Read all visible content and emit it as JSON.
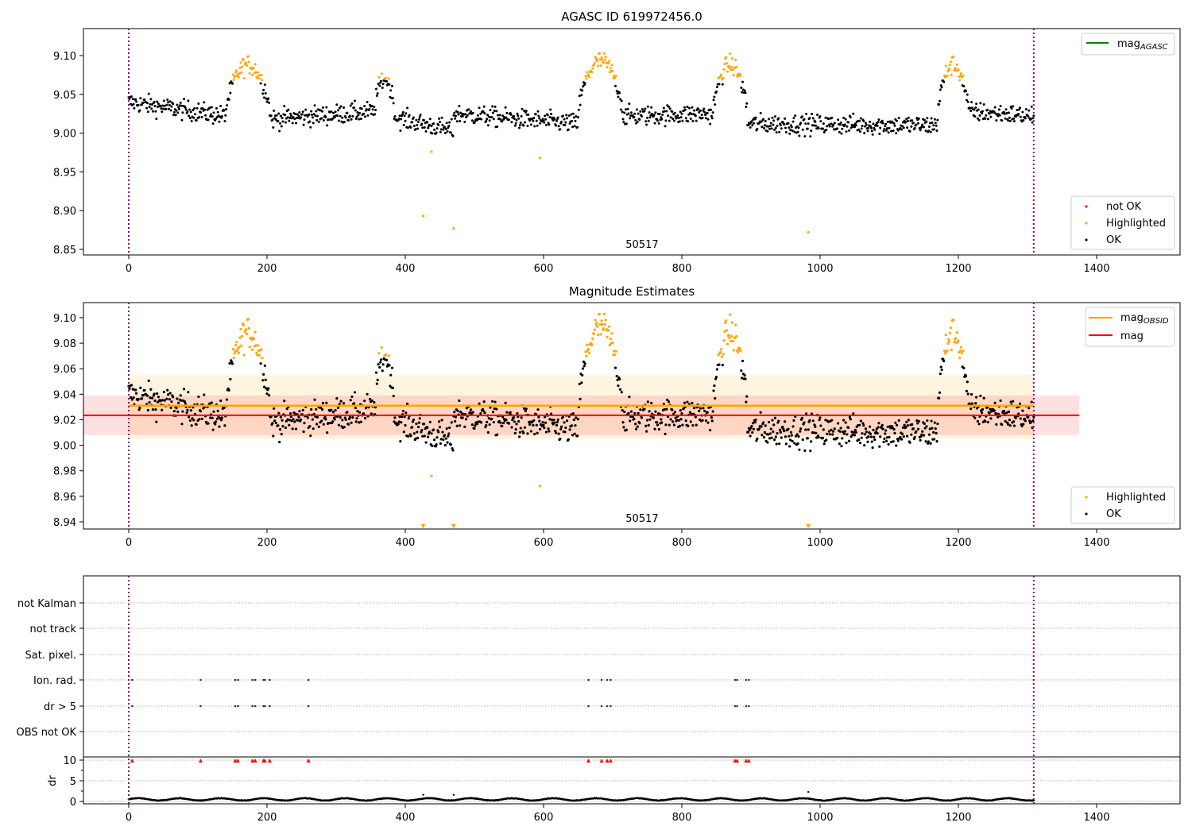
{
  "chart_data": [
    {
      "id": "agasc",
      "type": "scatter",
      "title": "AGASC ID 619972456.0",
      "xlabel": "",
      "ylabel": "",
      "xlim": [
        -65.5,
        1520.7
      ],
      "ylim": [
        8.8428,
        9.1348
      ],
      "xticks": [
        0,
        200,
        400,
        600,
        800,
        1000,
        1200,
        1400
      ],
      "xtick_labels": [
        "0",
        "200",
        "400",
        "600",
        "800",
        "1000",
        "1200",
        "1400"
      ],
      "yticks": [
        8.85,
        8.9,
        8.95,
        9.0,
        9.05,
        9.1
      ],
      "ytick_labels": [
        "8.85",
        "8.90",
        "8.95",
        "9.00",
        "9.05",
        "9.10"
      ],
      "vlines": [
        0,
        1309
      ],
      "annotation": "50517",
      "annotation_x": 654,
      "legend_upper": {
        "position": "upper-right",
        "entries": [
          {
            "label": "mag",
            "subscript": "AGASC",
            "color": "#008000",
            "kind": "line"
          }
        ]
      },
      "legend_lower": {
        "position": "lower-right",
        "entries": [
          {
            "label": "not OK",
            "color": "#ff0000",
            "kind": "dot"
          },
          {
            "label": "Highlighted",
            "color": "#ffa500",
            "kind": "dot"
          },
          {
            "label": "OK",
            "color": "#000000",
            "kind": "dot"
          }
        ]
      },
      "outliers": [
        {
          "x": 438,
          "y": 8.976,
          "status": "Highlighted"
        },
        {
          "x": 426,
          "y": 8.893,
          "status": "Highlighted"
        },
        {
          "x": 470,
          "y": 8.877,
          "status": "Highlighted"
        },
        {
          "x": 595,
          "y": 8.968,
          "status": "Highlighted"
        },
        {
          "x": 983,
          "y": 8.872,
          "status": "Highlighted"
        }
      ]
    },
    {
      "id": "estimates",
      "type": "scatter",
      "title": "Magnitude Estimates",
      "xlabel": "",
      "ylabel": "",
      "xlim": [
        -65.5,
        1520.7
      ],
      "ylim": [
        8.9344,
        9.1118
      ],
      "xticks": [
        0,
        200,
        400,
        600,
        800,
        1000,
        1200,
        1400
      ],
      "xtick_labels": [
        "0",
        "200",
        "400",
        "600",
        "800",
        "1000",
        "1200",
        "1400"
      ],
      "yticks": [
        8.94,
        8.96,
        8.98,
        9.0,
        9.02,
        9.04,
        9.06,
        9.08,
        9.1
      ],
      "ytick_labels": [
        "8.94",
        "8.96",
        "8.98",
        "9.00",
        "9.02",
        "9.04",
        "9.06",
        "9.08",
        "9.10"
      ],
      "vlines": [
        0,
        1309
      ],
      "annotation": "50517",
      "annotation_x": 654,
      "mag_obsid": {
        "value": 9.031,
        "band": [
          9.005,
          9.055
        ],
        "x_range": [
          0,
          1309
        ],
        "color": "#ffa500"
      },
      "mag": {
        "value": 9.0235,
        "band": [
          9.008,
          9.039
        ],
        "x_range": [
          -65.5,
          1375
        ],
        "color": "#ff0000"
      },
      "legend_upper": {
        "position": "upper-right",
        "entries": [
          {
            "label": "mag",
            "subscript": "OBSID",
            "color": "#ffa500",
            "kind": "line"
          },
          {
            "label": "mag",
            "subscript": "",
            "color": "#ff0000",
            "kind": "line"
          }
        ]
      },
      "legend_lower": {
        "position": "lower-right",
        "entries": [
          {
            "label": "Highlighted",
            "color": "#ffa500",
            "kind": "dot"
          },
          {
            "label": "OK",
            "color": "#000000",
            "kind": "dot"
          }
        ]
      },
      "outliers": [
        {
          "x": 438,
          "y": 8.976,
          "status": "Highlighted"
        },
        {
          "x": 595,
          "y": 8.968,
          "status": "Highlighted"
        }
      ],
      "below_range_markers": [
        426,
        470,
        983
      ]
    },
    {
      "id": "flags",
      "type": "scatter",
      "title": "",
      "xlim": [
        -65.5,
        1520.7
      ],
      "categories": [
        "not Kalman",
        "not track",
        "Sat. pixel.",
        "Ion. rad.",
        "dr > 5",
        "OBS not OK"
      ],
      "vlines": [
        0,
        1309
      ],
      "flag_points": {
        "Ion. rad.": [
          5,
          104,
          154,
          158,
          179,
          183,
          195,
          197,
          204,
          260,
          665,
          684,
          692,
          697,
          877,
          880,
          893,
          897
        ],
        "dr > 5": [
          5,
          104,
          154,
          158,
          179,
          183,
          195,
          197,
          204,
          260,
          665,
          684,
          692,
          697,
          877,
          880,
          893,
          897
        ]
      }
    },
    {
      "id": "dr",
      "type": "scatter",
      "title": "",
      "xlabel": "",
      "ylabel": "dr",
      "xlim": [
        -65.5,
        1520.7
      ],
      "ylim": [
        -0.7,
        10.5
      ],
      "yticks": [
        0,
        5,
        10
      ],
      "ytick_labels": [
        "0",
        "5",
        "10"
      ],
      "xticks": [
        0,
        200,
        400,
        600,
        800,
        1000,
        1200,
        1400
      ],
      "xtick_labels": [
        "0",
        "200",
        "400",
        "600",
        "800",
        "1000",
        "1200",
        "1400"
      ],
      "vlines": [
        0,
        1309
      ],
      "clipped_markers_at_10": [
        5,
        104,
        154,
        158,
        179,
        183,
        195,
        197,
        204,
        260,
        665,
        684,
        692,
        697,
        877,
        880,
        893,
        897
      ],
      "dr_outliers": [
        {
          "x": 426,
          "y": 1.6
        },
        {
          "x": 470,
          "y": 1.6
        },
        {
          "x": 983,
          "y": 2.3
        }
      ],
      "dr_baseline": {
        "mean": 0.5,
        "amplitude": 0.35
      }
    }
  ],
  "light_curve": {
    "n_points": 1310,
    "baseline_segments": [
      {
        "x0": 0,
        "x1": 140,
        "y0": 9.04,
        "y1": 9.022
      },
      {
        "x0": 140,
        "x1": 205,
        "peak": 9.088
      },
      {
        "x0": 205,
        "x1": 355,
        "y0": 9.018,
        "y1": 9.028
      },
      {
        "x0": 355,
        "x1": 385,
        "peak": 9.07
      },
      {
        "x0": 385,
        "x1": 470,
        "y0": 9.02,
        "y1": 9.003
      },
      {
        "x0": 470,
        "x1": 650,
        "y0": 9.025,
        "y1": 9.012
      },
      {
        "x0": 650,
        "x1": 715,
        "peak": 9.093
      },
      {
        "x0": 715,
        "x1": 845,
        "y0": 9.022,
        "y1": 9.025
      },
      {
        "x0": 845,
        "x1": 895,
        "peak": 9.088
      },
      {
        "x0": 895,
        "x1": 1170,
        "y0": 9.012,
        "y1": 9.01
      },
      {
        "x0": 1170,
        "x1": 1215,
        "peak": 9.088
      },
      {
        "x0": 1215,
        "x1": 1309,
        "y0": 9.028,
        "y1": 9.022
      }
    ],
    "highlight_threshold": 9.068,
    "noise": 0.009
  }
}
